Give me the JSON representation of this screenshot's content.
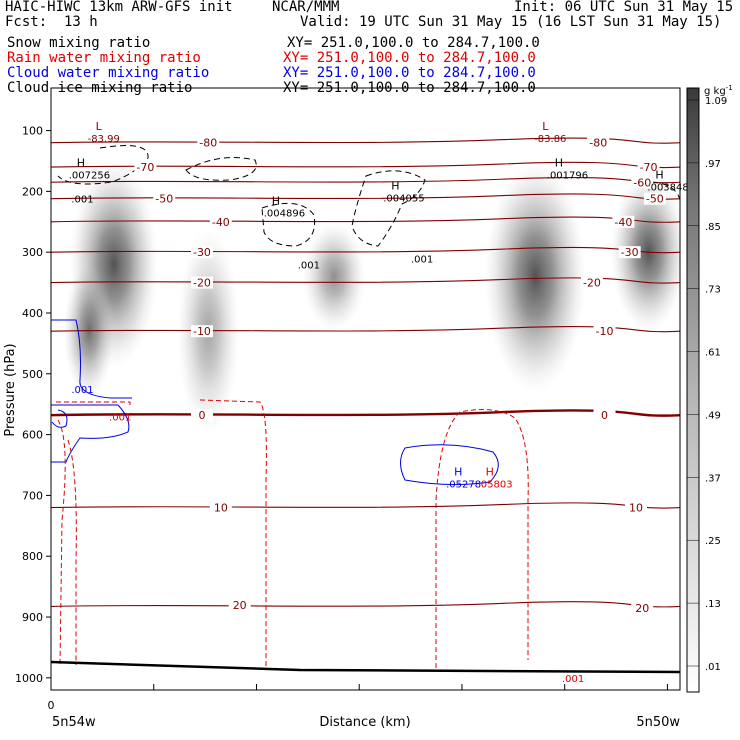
{
  "header": {
    "model": "HAIC-HIWC 13km ARW-GFS init",
    "center": "NCAR/MMM",
    "init": "Init: 06 UTC Sun 31 May 15",
    "fcst_label": "Fcst:",
    "fcst_value": "13 h",
    "valid": "Valid: 19 UTC Sun 31 May 15 (16 LST Sun 31 May 15)"
  },
  "fields": [
    {
      "name": "Snow mixing ratio",
      "xy": "XY= 251.0,100.0 to 284.7,100.0",
      "color": "#000000"
    },
    {
      "name": "Rain water mixing ratio",
      "xy": "XY= 251.0,100.0 to 284.7,100.0",
      "color": "#e00000"
    },
    {
      "name": "Cloud water mixing ratio",
      "xy": "XY= 251.0,100.0 to 284.7,100.0",
      "color": "#0000e0"
    },
    {
      "name": "Cloud ice mixing ratio",
      "xy": "XY= 251.0,100.0 to 284.7,100.0",
      "color": "#000000"
    }
  ],
  "chart_data": {
    "type": "heatmap",
    "ylabel": "Pressure (hPa)",
    "xlabel": "Distance (km)",
    "x_left_label": "5n54w",
    "x_right_label": "5n50w",
    "x_zero_label": "0",
    "y_ticks": [
      100,
      200,
      300,
      400,
      500,
      600,
      700,
      800,
      900,
      1000
    ],
    "ylim": [
      1020,
      30
    ],
    "colorbar": {
      "unit": "g kg",
      "unit_sup": "-1",
      "levels": [
        "1.09",
        ".97",
        ".85",
        ".73",
        ".61",
        ".49",
        ".37",
        ".25",
        ".13",
        ".01"
      ]
    },
    "shading_field": "Snow mixing ratio",
    "temperature_contours": [
      -80,
      -70,
      -60,
      -50,
      -40,
      -30,
      -20,
      -10,
      0,
      10,
      20
    ],
    "temperature_labels": [
      {
        "text": "-80",
        "x": 0.25,
        "p": 120
      },
      {
        "text": "-80",
        "x": 0.87,
        "p": 120
      },
      {
        "text": "-70",
        "x": 0.15,
        "p": 160
      },
      {
        "text": "-70",
        "x": 0.95,
        "p": 160
      },
      {
        "text": "-60",
        "x": 0.94,
        "p": 185
      },
      {
        "text": "-50",
        "x": 0.18,
        "p": 212
      },
      {
        "text": "-50",
        "x": 0.96,
        "p": 212
      },
      {
        "text": "-40",
        "x": 0.27,
        "p": 250
      },
      {
        "text": "-40",
        "x": 0.91,
        "p": 250
      },
      {
        "text": "-30",
        "x": 0.24,
        "p": 300
      },
      {
        "text": "-30",
        "x": 0.92,
        "p": 300
      },
      {
        "text": "-20",
        "x": 0.24,
        "p": 350
      },
      {
        "text": "-20",
        "x": 0.86,
        "p": 350
      },
      {
        "text": "-10",
        "x": 0.24,
        "p": 430
      },
      {
        "text": "-10",
        "x": 0.88,
        "p": 430
      },
      {
        "text": "0",
        "x": 0.24,
        "p": 568
      },
      {
        "text": "0",
        "x": 0.88,
        "p": 568
      },
      {
        "text": "10",
        "x": 0.27,
        "p": 720
      },
      {
        "text": "10",
        "x": 0.93,
        "p": 720
      },
      {
        "text": "20",
        "x": 0.3,
        "p": 880
      },
      {
        "text": "20",
        "x": 0.94,
        "p": 885
      }
    ],
    "extrema_labels": [
      {
        "mark": "L",
        "value": "-83.99",
        "x": 0.09,
        "p": 112,
        "color": "#800000"
      },
      {
        "mark": "L",
        "value": "-83.86",
        "x": 0.8,
        "p": 112,
        "color": "#800000"
      },
      {
        "mark": "H",
        "value": ".007256",
        "x": 0.06,
        "p": 172,
        "color": "#000000"
      },
      {
        "mark": "H",
        "value": ".001796",
        "x": 0.82,
        "p": 172,
        "color": "#000000"
      },
      {
        "mark": "H",
        "value": ".003848",
        "x": 0.98,
        "p": 192,
        "color": "#000000"
      },
      {
        "mark": "H",
        "value": ".004055",
        "x": 0.56,
        "p": 210,
        "color": "#000000"
      },
      {
        "mark": "H",
        "value": ".004896",
        "x": 0.37,
        "p": 235,
        "color": "#000000"
      },
      {
        "mark": "H",
        "value": ".05278",
        "x": 0.66,
        "p": 680,
        "color": "#0000e0"
      },
      {
        "mark": "H",
        "value": ".05803",
        "x": 0.71,
        "p": 680,
        "color": "#e00000"
      }
    ],
    "contour_value_labels": [
      {
        "text": ".001",
        "x": 0.05,
        "p": 212,
        "color": "#000000"
      },
      {
        "text": ".001",
        "x": 0.41,
        "p": 320,
        "color": "#000000"
      },
      {
        "text": ".001",
        "x": 0.59,
        "p": 310,
        "color": "#000000"
      },
      {
        "text": ".001",
        "x": 0.05,
        "p": 525,
        "color": "#0000e0"
      },
      {
        "text": ".001",
        "x": 0.11,
        "p": 570,
        "color": "#e00000"
      },
      {
        "text": ".001",
        "x": 0.83,
        "p": 1000,
        "color": "#e00000"
      }
    ],
    "snow_blobs": [
      {
        "x": 0.1,
        "p": 320,
        "rx": 0.07,
        "rp": 170,
        "intensity": 0.85
      },
      {
        "x": 0.06,
        "p": 430,
        "rx": 0.04,
        "rp": 110,
        "intensity": 0.7
      },
      {
        "x": 0.25,
        "p": 430,
        "rx": 0.05,
        "rp": 170,
        "intensity": 0.45
      },
      {
        "x": 0.45,
        "p": 340,
        "rx": 0.05,
        "rp": 90,
        "intensity": 0.55
      },
      {
        "x": 0.77,
        "p": 340,
        "rx": 0.08,
        "rp": 190,
        "intensity": 0.85
      },
      {
        "x": 0.95,
        "p": 300,
        "rx": 0.06,
        "rp": 130,
        "intensity": 0.85
      }
    ]
  }
}
